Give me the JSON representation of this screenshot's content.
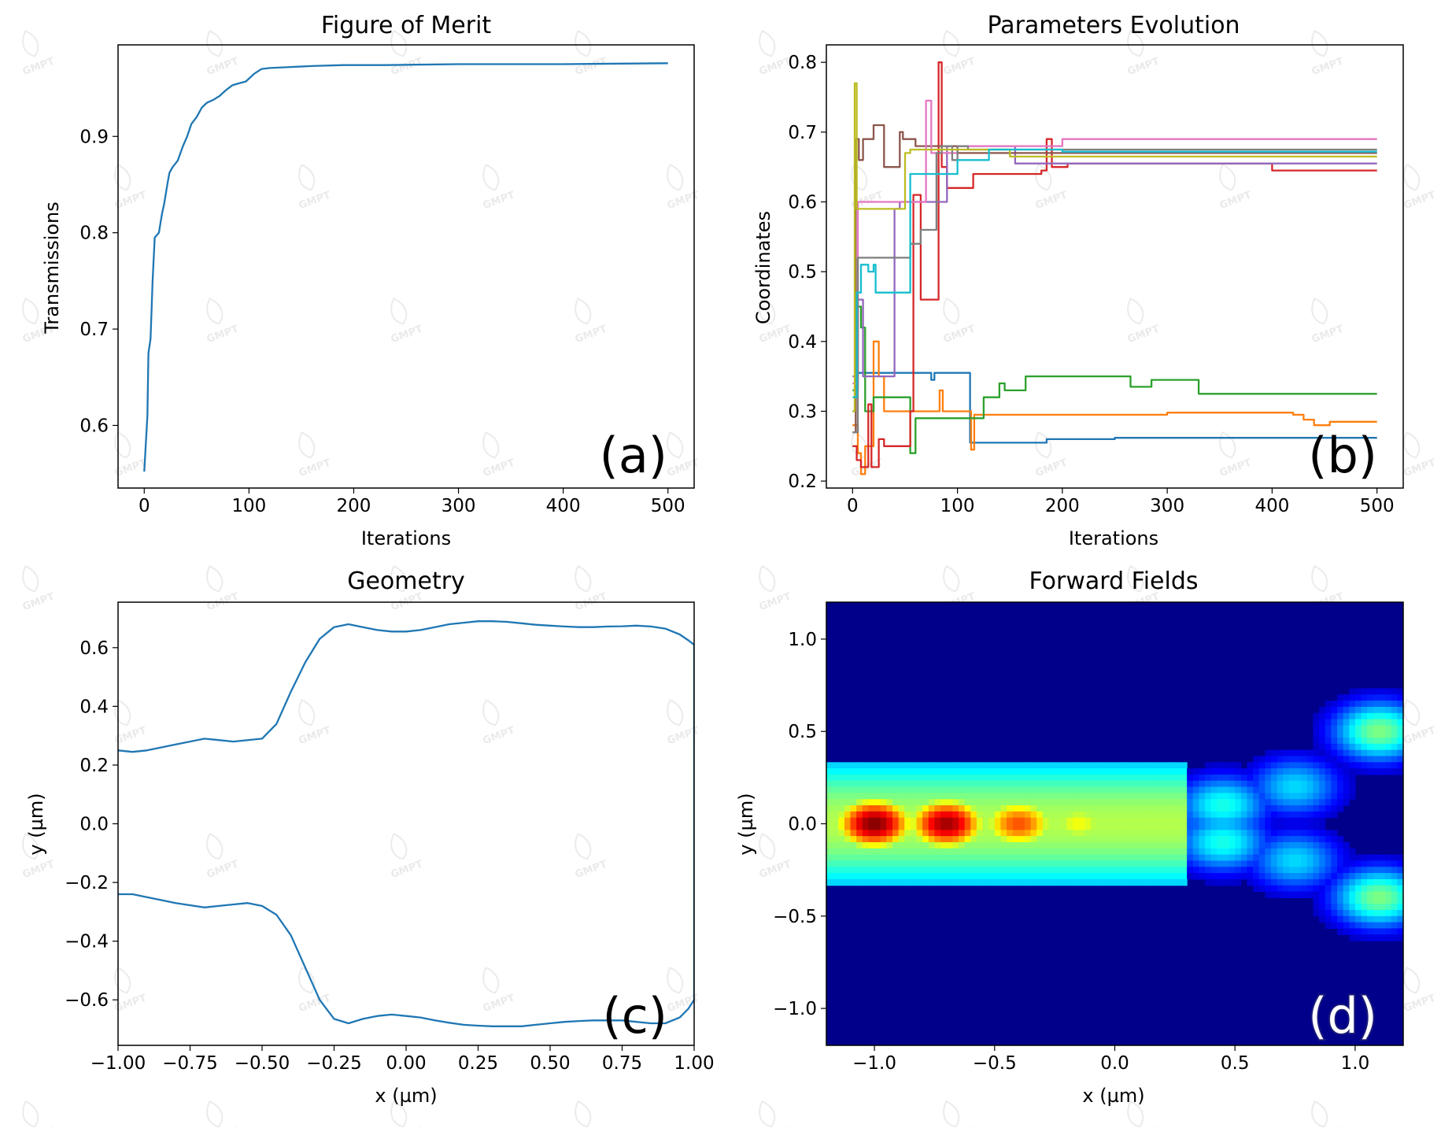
{
  "watermark": "GMPT",
  "chart_data": [
    {
      "id": "a",
      "type": "line",
      "title": "Figure of Merit",
      "xlabel": "Iterations",
      "ylabel": "Transmissions",
      "tag": "(a)",
      "xlim": [
        -25,
        525
      ],
      "ylim": [
        0.535,
        0.995
      ],
      "xticks": [
        0,
        100,
        200,
        300,
        400,
        500
      ],
      "xtick_labels": [
        "0",
        "100",
        "200",
        "300",
        "400",
        "500"
      ],
      "yticks": [
        0.6,
        0.7,
        0.8,
        0.9
      ],
      "ytick_labels": [
        "0.6",
        "0.7",
        "0.8",
        "0.9"
      ],
      "grid": false,
      "colors": {
        "line": "#1f77b4"
      },
      "series": [
        {
          "x": [
            0,
            2,
            3,
            4,
            6,
            8,
            10,
            14,
            17,
            19,
            22,
            24,
            27,
            32,
            37,
            41,
            45,
            50,
            55,
            60,
            66,
            72,
            78,
            84,
            90,
            97,
            105,
            112,
            120,
            140,
            160,
            190,
            230,
            300,
            400,
            500
          ],
          "y": [
            0.552,
            0.59,
            0.61,
            0.675,
            0.69,
            0.75,
            0.795,
            0.8,
            0.82,
            0.83,
            0.85,
            0.862,
            0.868,
            0.875,
            0.89,
            0.9,
            0.913,
            0.92,
            0.93,
            0.935,
            0.938,
            0.942,
            0.948,
            0.953,
            0.955,
            0.957,
            0.965,
            0.97,
            0.971,
            0.972,
            0.973,
            0.974,
            0.974,
            0.975,
            0.975,
            0.976
          ]
        }
      ]
    },
    {
      "id": "b",
      "type": "line",
      "title": "Parameters Evolution",
      "xlabel": "Iterations",
      "ylabel": "Coordinates",
      "tag": "(b)",
      "xlim": [
        -25,
        525
      ],
      "ylim": [
        0.19,
        0.825
      ],
      "xticks": [
        0,
        100,
        200,
        300,
        400,
        500
      ],
      "xtick_labels": [
        "0",
        "100",
        "200",
        "300",
        "400",
        "500"
      ],
      "yticks": [
        0.2,
        0.3,
        0.4,
        0.5,
        0.6,
        0.7,
        0.8
      ],
      "ytick_labels": [
        "0.2",
        "0.3",
        "0.4",
        "0.5",
        "0.6",
        "0.7",
        "0.8"
      ],
      "grid": false,
      "series": [
        {
          "color": "#1f77b4",
          "x": [
            0,
            3,
            5,
            30,
            75,
            78,
            82,
            108,
            112,
            115,
            180,
            185,
            250,
            500
          ],
          "y": [
            0.3,
            0.35,
            0.355,
            0.355,
            0.345,
            0.355,
            0.355,
            0.355,
            0.255,
            0.255,
            0.255,
            0.26,
            0.262,
            0.262
          ]
        },
        {
          "color": "#ff7f0e",
          "x": [
            0,
            5,
            8,
            12,
            20,
            25,
            30,
            50,
            80,
            83,
            86,
            110,
            113,
            116,
            130,
            300,
            420,
            430,
            440,
            455,
            500
          ],
          "y": [
            0.28,
            0.24,
            0.21,
            0.25,
            0.4,
            0.35,
            0.3,
            0.3,
            0.3,
            0.33,
            0.3,
            0.3,
            0.245,
            0.295,
            0.295,
            0.298,
            0.295,
            0.288,
            0.28,
            0.285,
            0.285
          ]
        },
        {
          "color": "#2ca02c",
          "x": [
            0,
            5,
            8,
            12,
            20,
            50,
            55,
            60,
            100,
            110,
            125,
            140,
            145,
            165,
            250,
            265,
            285,
            330,
            500
          ],
          "y": [
            0.33,
            0.45,
            0.42,
            0.3,
            0.32,
            0.32,
            0.24,
            0.29,
            0.29,
            0.29,
            0.32,
            0.34,
            0.33,
            0.35,
            0.35,
            0.335,
            0.345,
            0.325,
            0.325
          ]
        },
        {
          "color": "#d62728",
          "x": [
            0,
            4,
            8,
            15,
            18,
            25,
            30,
            55,
            58,
            65,
            80,
            82,
            85,
            90,
            115,
            180,
            185,
            190,
            205,
            250,
            350,
            400,
            500
          ],
          "y": [
            0.25,
            0.23,
            0.22,
            0.31,
            0.22,
            0.26,
            0.25,
            0.3,
            0.61,
            0.46,
            0.46,
            0.8,
            0.65,
            0.62,
            0.64,
            0.645,
            0.69,
            0.65,
            0.655,
            0.655,
            0.655,
            0.645,
            0.645
          ]
        },
        {
          "color": "#9467bd",
          "x": [
            0,
            5,
            10,
            30,
            40,
            45,
            60,
            85,
            90,
            100,
            150,
            155,
            500
          ],
          "y": [
            0.35,
            0.46,
            0.35,
            0.35,
            0.59,
            0.6,
            0.6,
            0.6,
            0.68,
            0.68,
            0.68,
            0.655,
            0.655
          ]
        },
        {
          "color": "#8c564b",
          "x": [
            0,
            3,
            6,
            10,
            12,
            20,
            25,
            30,
            45,
            48,
            60,
            70,
            100,
            130,
            200,
            500
          ],
          "y": [
            0.27,
            0.69,
            0.66,
            0.69,
            0.69,
            0.71,
            0.71,
            0.65,
            0.7,
            0.69,
            0.68,
            0.68,
            0.67,
            0.67,
            0.67,
            0.67
          ]
        },
        {
          "color": "#e377c2",
          "x": [
            0,
            5,
            10,
            30,
            40,
            70,
            75,
            100,
            200,
            500
          ],
          "y": [
            0.34,
            0.6,
            0.6,
            0.6,
            0.6,
            0.745,
            0.67,
            0.68,
            0.69,
            0.69
          ]
        },
        {
          "color": "#7f7f7f",
          "x": [
            0,
            5,
            10,
            40,
            55,
            65,
            75,
            80,
            85,
            95,
            100,
            110,
            115,
            250,
            500
          ],
          "y": [
            0.27,
            0.52,
            0.52,
            0.52,
            0.54,
            0.56,
            0.56,
            0.67,
            0.68,
            0.66,
            0.68,
            0.675,
            0.675,
            0.675,
            0.675
          ]
        },
        {
          "color": "#bcbd22",
          "x": [
            0,
            2,
            4,
            6,
            45,
            50,
            55,
            60,
            100,
            150,
            200,
            500
          ],
          "y": [
            0.3,
            0.77,
            0.59,
            0.59,
            0.59,
            0.67,
            0.675,
            0.675,
            0.675,
            0.665,
            0.665,
            0.665
          ]
        },
        {
          "color": "#17becf",
          "x": [
            0,
            4,
            8,
            15,
            20,
            22,
            50,
            55,
            60,
            100,
            130,
            200,
            500
          ],
          "y": [
            0.32,
            0.47,
            0.51,
            0.5,
            0.51,
            0.47,
            0.47,
            0.64,
            0.64,
            0.66,
            0.675,
            0.672,
            0.672
          ]
        }
      ]
    },
    {
      "id": "c",
      "type": "line",
      "title": "Geometry",
      "xlabel": "x (µm)",
      "ylabel": "y (µm)",
      "tag": "(c)",
      "xlim": [
        -1.0,
        1.0
      ],
      "ylim": [
        -0.755,
        0.755
      ],
      "xticks": [
        -1.0,
        -0.75,
        -0.5,
        -0.25,
        0.0,
        0.25,
        0.5,
        0.75,
        1.0
      ],
      "xtick_labels": [
        "−1.00",
        "−0.75",
        "−0.50",
        "−0.25",
        "0.00",
        "0.25",
        "0.50",
        "0.75",
        "1.00"
      ],
      "yticks": [
        -0.6,
        -0.4,
        -0.2,
        0.0,
        0.2,
        0.4,
        0.6
      ],
      "ytick_labels": [
        "−0.6",
        "−0.4",
        "−0.2",
        "0.0",
        "0.2",
        "0.4",
        "0.6"
      ],
      "grid": false,
      "colors": {
        "line": "#1f77b4"
      },
      "series": [
        {
          "x": [
            -1.0,
            -0.95,
            -0.9,
            -0.8,
            -0.7,
            -0.65,
            -0.6,
            -0.5,
            -0.45,
            -0.4,
            -0.35,
            -0.3,
            -0.25,
            -0.2,
            -0.15,
            -0.1,
            -0.05,
            0.0,
            0.05,
            0.1,
            0.15,
            0.2,
            0.25,
            0.3,
            0.35,
            0.4,
            0.45,
            0.5,
            0.55,
            0.6,
            0.65,
            0.7,
            0.75,
            0.8,
            0.85,
            0.9,
            0.95,
            0.98,
            1.0,
            1.0,
            0.98,
            0.95,
            0.9,
            0.85,
            0.8,
            0.75,
            0.7,
            0.65,
            0.6,
            0.55,
            0.5,
            0.45,
            0.4,
            0.35,
            0.3,
            0.25,
            0.2,
            0.15,
            0.1,
            0.05,
            0.0,
            -0.05,
            -0.1,
            -0.15,
            -0.2,
            -0.25,
            -0.3,
            -0.35,
            -0.4,
            -0.45,
            -0.5,
            -0.55,
            -0.6,
            -0.65,
            -0.7,
            -0.8,
            -0.9,
            -0.95,
            -1.0
          ],
          "y": [
            0.25,
            0.245,
            0.25,
            0.27,
            0.29,
            0.285,
            0.28,
            0.29,
            0.34,
            0.45,
            0.55,
            0.63,
            0.67,
            0.68,
            0.67,
            0.66,
            0.655,
            0.655,
            0.66,
            0.67,
            0.68,
            0.685,
            0.69,
            0.69,
            0.688,
            0.683,
            0.678,
            0.675,
            0.672,
            0.67,
            0.67,
            0.672,
            0.673,
            0.675,
            0.672,
            0.665,
            0.645,
            0.625,
            0.61,
            -0.6,
            -0.63,
            -0.66,
            -0.68,
            -0.68,
            -0.675,
            -0.67,
            -0.67,
            -0.67,
            -0.672,
            -0.675,
            -0.68,
            -0.685,
            -0.69,
            -0.69,
            -0.69,
            -0.688,
            -0.685,
            -0.678,
            -0.67,
            -0.66,
            -0.655,
            -0.65,
            -0.655,
            -0.665,
            -0.68,
            -0.665,
            -0.6,
            -0.49,
            -0.38,
            -0.31,
            -0.28,
            -0.27,
            -0.275,
            -0.28,
            -0.285,
            -0.27,
            -0.25,
            -0.24,
            -0.24
          ]
        }
      ]
    },
    {
      "id": "d",
      "type": "heatmap",
      "title": "Forward Fields",
      "xlabel": "x (µm)",
      "ylabel": "y (µm)",
      "tag": "(d)",
      "xlim": [
        -1.2,
        1.2
      ],
      "ylim": [
        -1.2,
        1.2
      ],
      "xticks": [
        -1.0,
        -0.5,
        0.0,
        0.5,
        1.0
      ],
      "xtick_labels": [
        "−1.0",
        "−0.5",
        "0.0",
        "0.5",
        "1.0"
      ],
      "yticks": [
        -1.0,
        -0.5,
        0.0,
        0.5,
        1.0
      ],
      "ytick_labels": [
        "−1.0",
        "−0.5",
        "0.0",
        "0.5",
        "1.0"
      ],
      "colormap": "jet",
      "grid": false,
      "hotspots": [
        {
          "x": -1.0,
          "y": 0.0,
          "value": 1.0
        },
        {
          "x": -0.7,
          "y": 0.0,
          "value": 0.97
        },
        {
          "x": -0.4,
          "y": 0.0,
          "value": 0.8
        },
        {
          "x": -0.15,
          "y": 0.0,
          "value": 0.62
        },
        {
          "x": 0.12,
          "y": 0.0,
          "value": 0.55
        },
        {
          "x": 0.45,
          "y": 0.1,
          "value": 0.4
        },
        {
          "x": 0.45,
          "y": -0.1,
          "value": 0.4
        },
        {
          "x": 0.75,
          "y": 0.2,
          "value": 0.34
        },
        {
          "x": 0.75,
          "y": -0.2,
          "value": 0.34
        },
        {
          "x": 1.1,
          "y": 0.5,
          "value": 0.5
        },
        {
          "x": 1.1,
          "y": -0.4,
          "value": 0.5
        }
      ]
    }
  ]
}
